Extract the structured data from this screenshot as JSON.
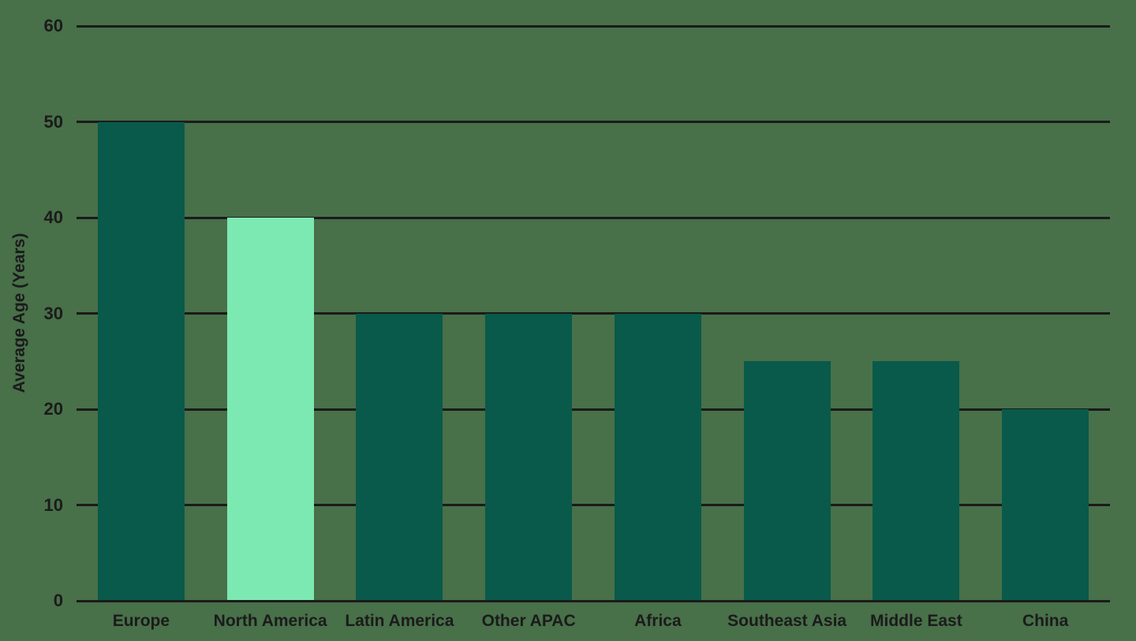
{
  "chart_data": {
    "type": "bar",
    "title": "",
    "categories": [
      "Europe",
      "North America",
      "Latin America",
      "Other APAC",
      "Africa",
      "Southeast Asia",
      "Middle East",
      "China"
    ],
    "values": [
      50,
      40,
      30,
      30,
      30,
      25,
      25,
      20
    ],
    "highlight_index": 1,
    "highlight_category": "North America",
    "xlabel": "",
    "ylabel": "Average Age (Years)",
    "yticks": [
      0,
      10,
      20,
      30,
      40,
      50,
      60
    ],
    "ylim": [
      0,
      60
    ],
    "grid": "horizontal",
    "legend": "none"
  },
  "colors": {
    "background": "#487049",
    "bar": "#095A4A",
    "bar_highlight": "#7CE9B2",
    "grid_line": "#1B1B1B",
    "text": "#1B1B1B"
  }
}
